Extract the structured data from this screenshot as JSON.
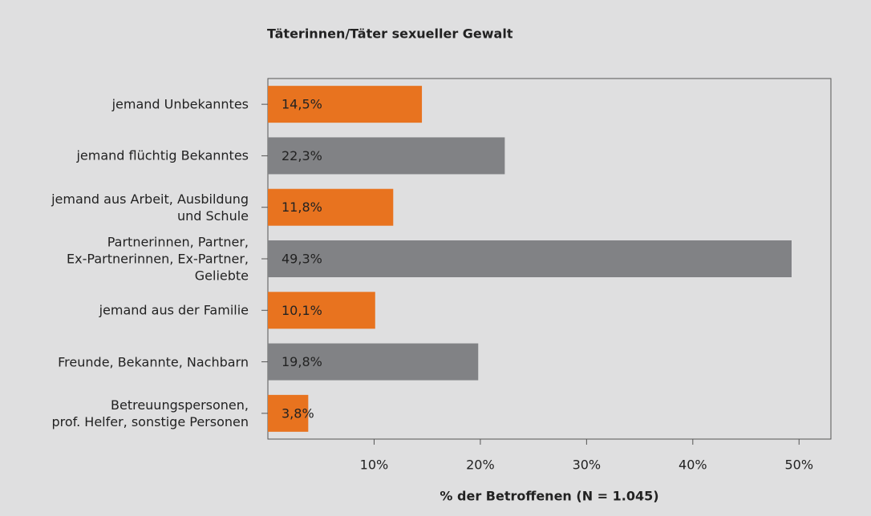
{
  "chart_data": {
    "type": "bar",
    "orientation": "horizontal",
    "title": "Täterinnen/Täter sexueller Gewalt",
    "xlabel": "% der Betroffenen (N = 1.045)",
    "categories": [
      "jemand Unbekanntes",
      "jemand flüchtig Bekanntes",
      "jemand aus Arbeit, Ausbildung\nund Schule",
      "Partnerinnen, Partner,\nEx-Partnerinnen, Ex-Partner,\nGeliebte",
      "jemand aus der Familie",
      "Freunde, Bekannte, Nachbarn",
      "Betreuungspersonen,\nprof. Helfer, sonstige Personen"
    ],
    "values": [
      14.5,
      22.3,
      11.8,
      49.3,
      10.1,
      19.8,
      3.8
    ],
    "value_labels": [
      "14,5%",
      "22,3%",
      "11,8%",
      "49,3%",
      "10,1%",
      "19,8%",
      "3,8%"
    ],
    "colors": [
      "#e8731f",
      "#818285",
      "#e8731f",
      "#818285",
      "#e8731f",
      "#818285",
      "#e8731f"
    ],
    "xlim": [
      0,
      53
    ],
    "xticks": [
      {
        "value": 10,
        "label": "10%"
      },
      {
        "value": 20,
        "label": "20%"
      },
      {
        "value": 30,
        "label": "30%"
      },
      {
        "value": 40,
        "label": "40%"
      },
      {
        "value": 50,
        "label": "50%"
      }
    ]
  }
}
